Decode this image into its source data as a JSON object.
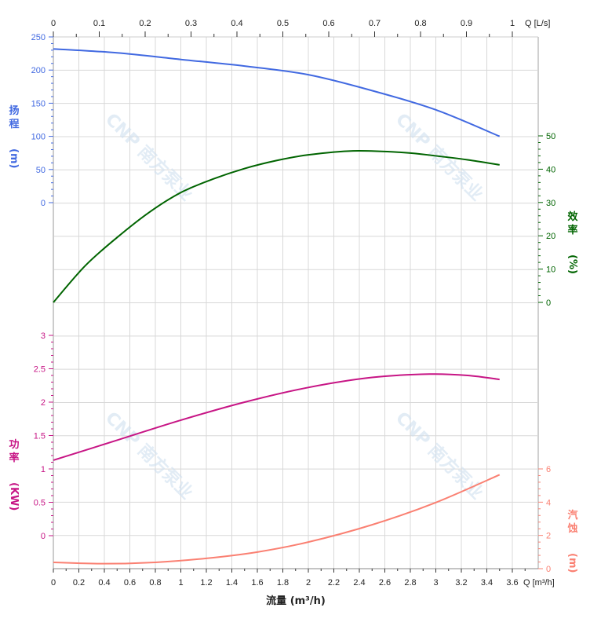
{
  "chart_data": {
    "type": "line",
    "x_axis_bottom": {
      "label": "流量 (m³/h)",
      "unit_label": "Q [m³/h]",
      "range": [
        0,
        3.8
      ],
      "ticks": [
        "0",
        "0.2",
        "0.4",
        "0.6",
        "0.8",
        "1",
        "1.2",
        "1.4",
        "1.6",
        "1.8",
        "2",
        "2.2",
        "2.4",
        "2.6",
        "2.8",
        "3",
        "3.2",
        "3.4",
        "3.6"
      ]
    },
    "x_axis_top": {
      "unit_label": "Q [L/s]",
      "ticks": [
        "0",
        "0.1",
        "0.2",
        "0.3",
        "0.4",
        "0.5",
        "0.6",
        "0.7",
        "0.8",
        "0.9",
        "1"
      ]
    },
    "grid": true,
    "series": [
      {
        "name": "扬程 (m)",
        "axis": "left-top",
        "color": "#4169e1",
        "ticks": [
          "0",
          "50",
          "100",
          "150",
          "200",
          "250"
        ],
        "range": [
          0,
          250
        ],
        "x": [
          0,
          0.5,
          1,
          1.5,
          2,
          2.5,
          3,
          3.5
        ],
        "y": [
          232,
          226,
          216,
          206,
          193,
          169,
          140,
          100
        ]
      },
      {
        "name": "效率 (%)",
        "axis": "right-top",
        "color": "#006400",
        "ticks": [
          "0",
          "10",
          "20",
          "30",
          "40",
          "50"
        ],
        "range": [
          0,
          50
        ],
        "x": [
          0,
          0.25,
          0.5,
          0.75,
          1,
          1.25,
          1.5,
          1.75,
          2,
          2.35,
          2.75,
          3,
          3.25,
          3.5
        ],
        "y": [
          0,
          11,
          19.5,
          27,
          33,
          37,
          40.2,
          42.6,
          44.3,
          45.5,
          45,
          44,
          42.8,
          41.3
        ]
      },
      {
        "name": "功率 (KW)",
        "axis": "left-bottom",
        "color": "#c71585",
        "ticks": [
          "0",
          "0.5",
          "1",
          "1.5",
          "2",
          "2.5",
          "3"
        ],
        "range": [
          0,
          3
        ],
        "x": [
          0,
          0.5,
          1,
          1.5,
          2,
          2.5,
          2.95,
          3.25,
          3.5
        ],
        "y": [
          1.13,
          1.43,
          1.73,
          2.0,
          2.22,
          2.37,
          2.42,
          2.4,
          2.34
        ]
      },
      {
        "name": "汽蚀 (m)",
        "axis": "right-bottom",
        "color": "#fa8072",
        "ticks": [
          "0",
          "2",
          "4",
          "6"
        ],
        "range": [
          0,
          6
        ],
        "x": [
          0,
          0.4,
          0.8,
          1.2,
          1.6,
          2,
          2.5,
          3,
          3.5
        ],
        "y": [
          0.38,
          0.3,
          0.38,
          0.62,
          1.0,
          1.6,
          2.64,
          3.98,
          5.65
        ]
      }
    ],
    "watermark": "CNP 南方泵业"
  }
}
